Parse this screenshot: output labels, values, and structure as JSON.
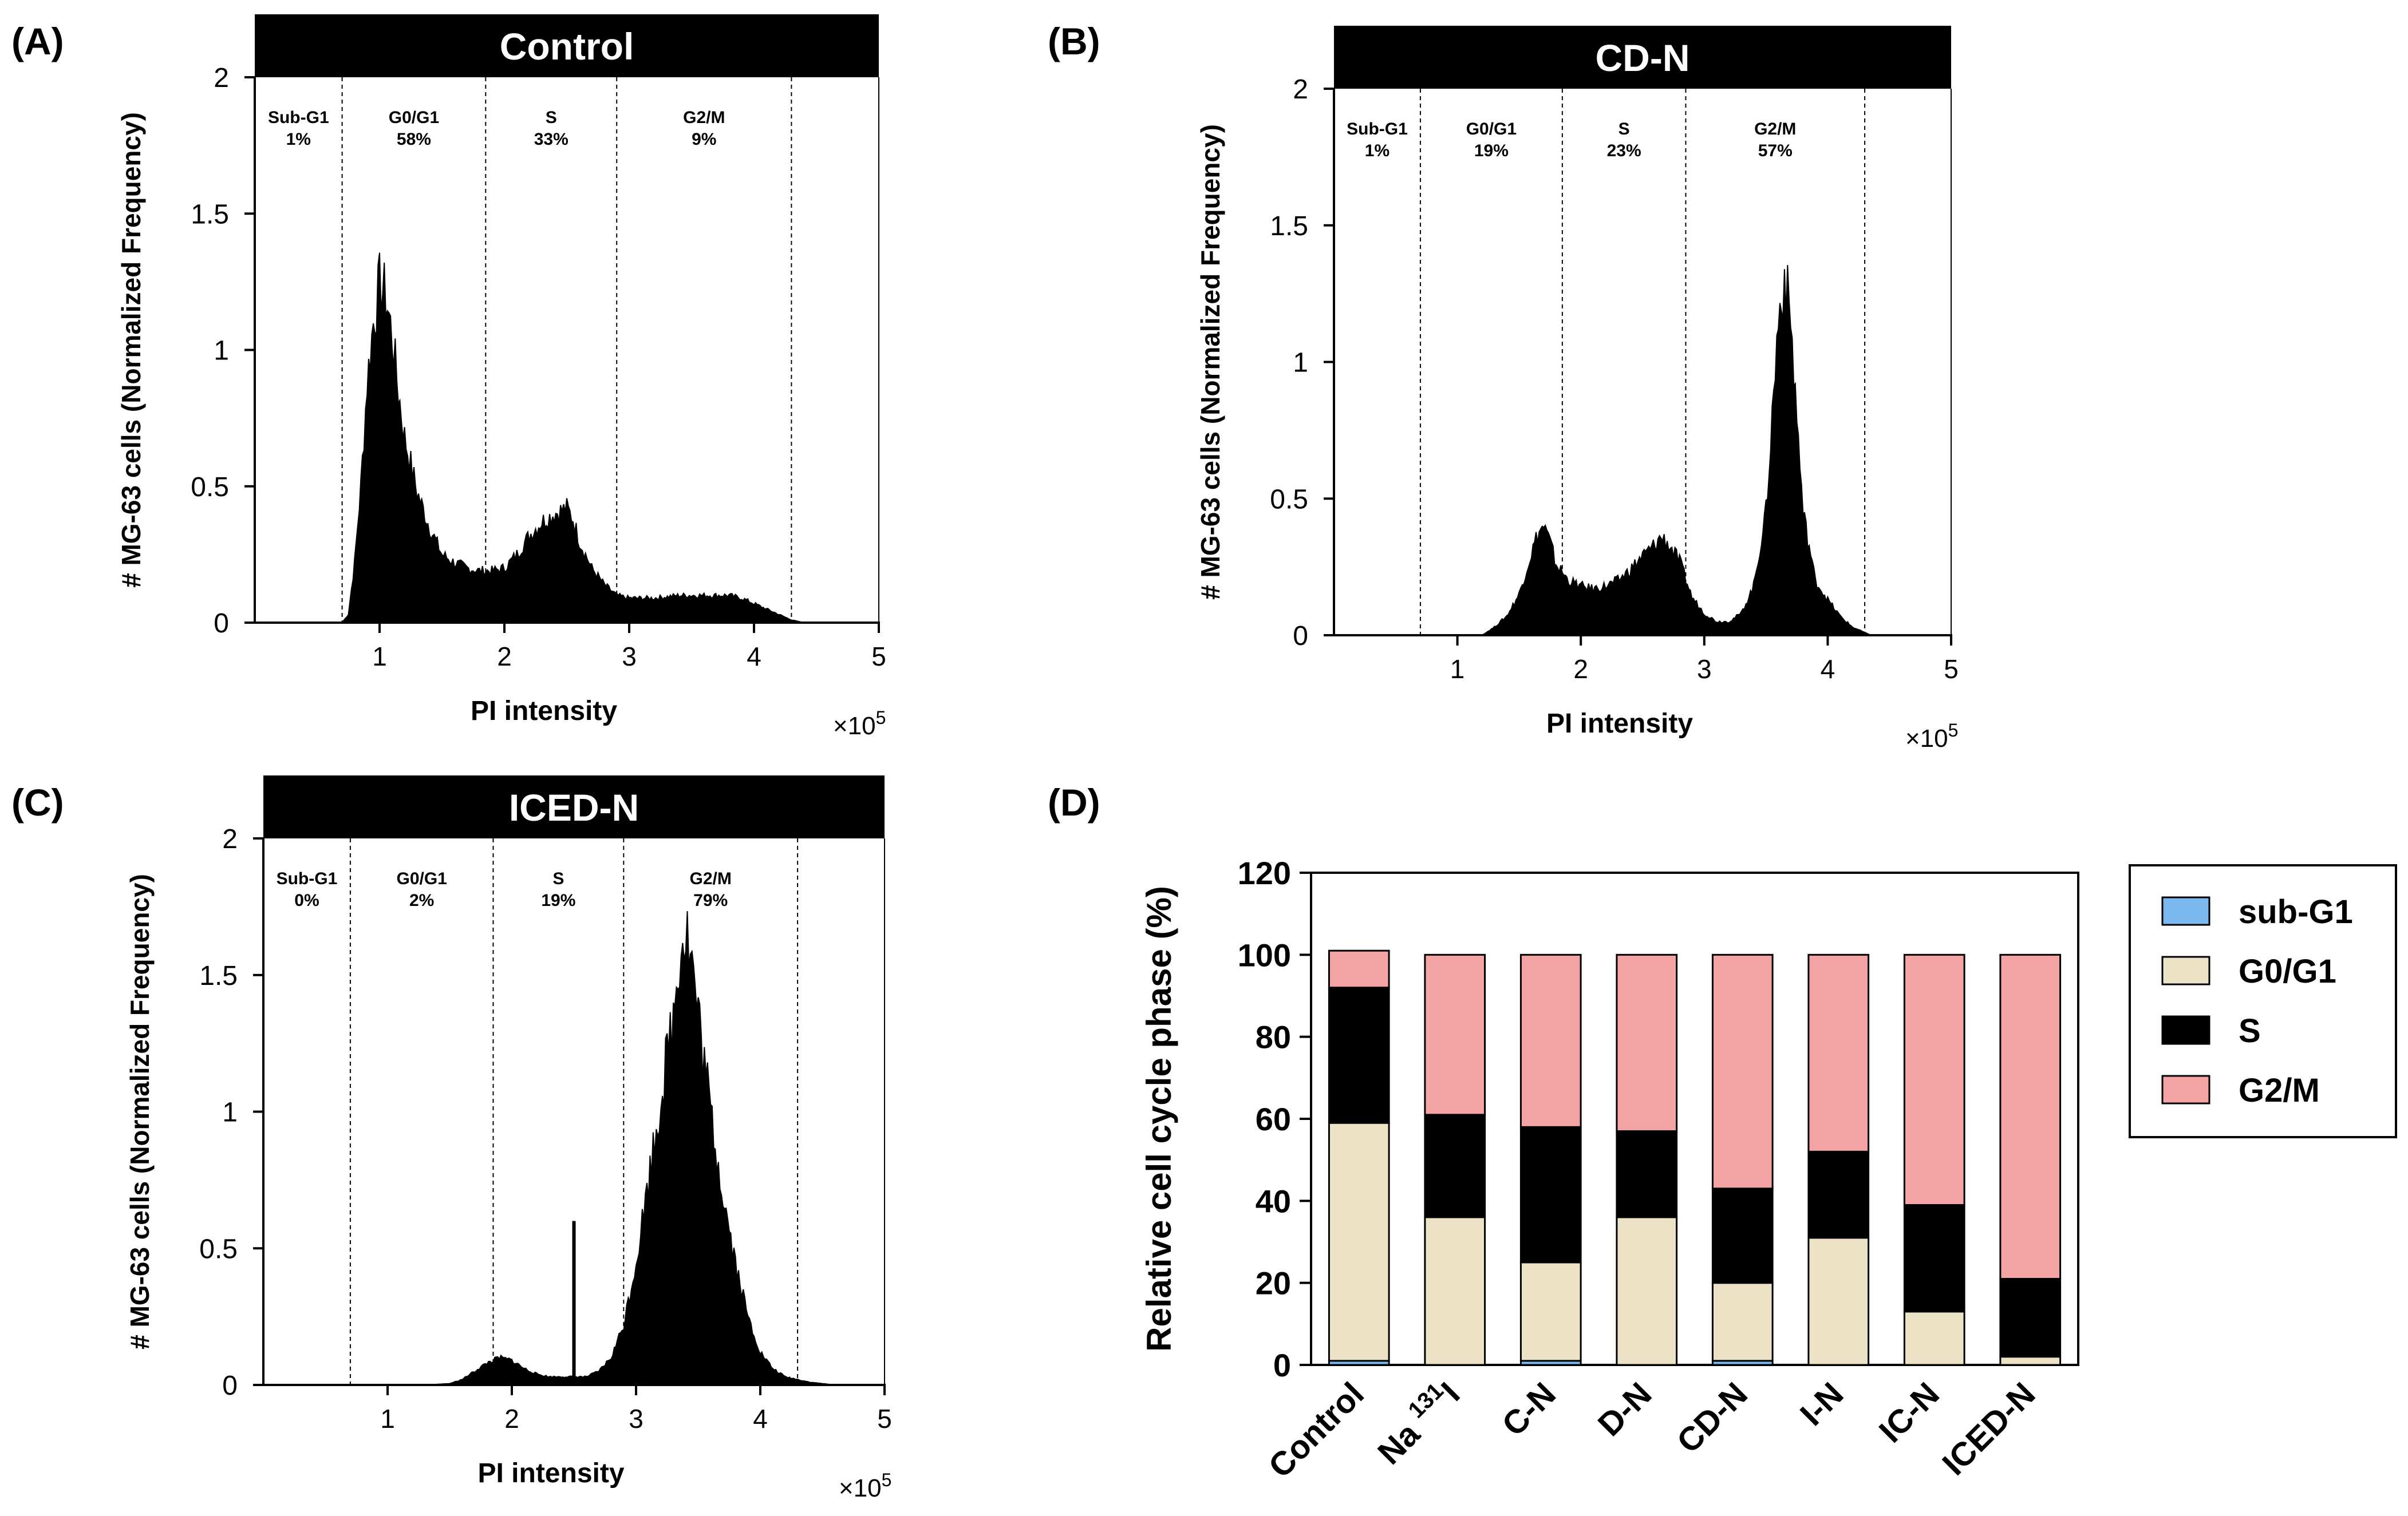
{
  "colors": {
    "histogram_fill": "#000000",
    "title_bar": "#000000",
    "title_text": "#ffffff",
    "sub_g1": "#7ab8f0",
    "g0g1": "#ece3c6",
    "s": "#000000",
    "g2m": "#f4a3a5"
  },
  "panels": [
    {
      "id": "A",
      "label": "(A)",
      "title": "Control",
      "ylabel": "# MG-63 cells (Normalized Frequency)",
      "xlabel": "PI intensity",
      "multiplier": "×10",
      "multiplier_exp": "5",
      "xlim": [
        0,
        5
      ],
      "ylim": [
        0,
        2
      ],
      "xticks": [
        "1",
        "2",
        "3",
        "4",
        "5"
      ],
      "yticks": [
        "0",
        "0.5",
        "1",
        "1.5",
        "2"
      ],
      "gates": [
        0.7,
        1.85,
        2.9,
        4.3
      ],
      "phases": [
        {
          "name": "Sub-G1",
          "pct": "1%"
        },
        {
          "name": "G0/G1",
          "pct": "58%"
        },
        {
          "name": "S",
          "pct": "33%"
        },
        {
          "name": "G2/M",
          "pct": "9%"
        }
      ],
      "histogram": [
        [
          0,
          0
        ],
        [
          0.7,
          0
        ],
        [
          0.75,
          0.03
        ],
        [
          0.8,
          0.22
        ],
        [
          0.85,
          0.5
        ],
        [
          0.9,
          0.88
        ],
        [
          0.95,
          1.1
        ],
        [
          1.0,
          1.24
        ],
        [
          1.05,
          1.2
        ],
        [
          1.1,
          1.05
        ],
        [
          1.15,
          0.85
        ],
        [
          1.2,
          0.68
        ],
        [
          1.3,
          0.48
        ],
        [
          1.4,
          0.35
        ],
        [
          1.5,
          0.25
        ],
        [
          1.6,
          0.22
        ],
        [
          1.7,
          0.2
        ],
        [
          1.8,
          0.19
        ],
        [
          1.9,
          0.19
        ],
        [
          2.0,
          0.2
        ],
        [
          2.1,
          0.25
        ],
        [
          2.2,
          0.32
        ],
        [
          2.3,
          0.37
        ],
        [
          2.4,
          0.4
        ],
        [
          2.5,
          0.42
        ],
        [
          2.55,
          0.38
        ],
        [
          2.6,
          0.3
        ],
        [
          2.7,
          0.2
        ],
        [
          2.8,
          0.14
        ],
        [
          2.9,
          0.1
        ],
        [
          3.0,
          0.09
        ],
        [
          3.2,
          0.09
        ],
        [
          3.4,
          0.1
        ],
        [
          3.6,
          0.1
        ],
        [
          3.8,
          0.1
        ],
        [
          3.9,
          0.09
        ],
        [
          4.0,
          0.07
        ],
        [
          4.1,
          0.05
        ],
        [
          4.2,
          0.03
        ],
        [
          4.3,
          0.01
        ],
        [
          4.4,
          0.0
        ],
        [
          5.0,
          0.0
        ]
      ]
    },
    {
      "id": "B",
      "label": "(B)",
      "title": "CD-N",
      "ylabel": "# MG-63 cells (Normalized Frequency)",
      "xlabel": "PI intensity",
      "multiplier": "×10",
      "multiplier_exp": "5",
      "xlim": [
        0,
        5
      ],
      "ylim": [
        0,
        2
      ],
      "xticks": [
        "1",
        "2",
        "3",
        "4",
        "5"
      ],
      "yticks": [
        "0",
        "0.5",
        "1",
        "1.5",
        "2"
      ],
      "gates": [
        0.7,
        1.85,
        2.85,
        4.3
      ],
      "phases": [
        {
          "name": "Sub-G1",
          "pct": "1%"
        },
        {
          "name": "G0/G1",
          "pct": "19%"
        },
        {
          "name": "S",
          "pct": "23%"
        },
        {
          "name": "G2/M",
          "pct": "57%"
        }
      ],
      "histogram": [
        [
          0,
          0
        ],
        [
          1.2,
          0
        ],
        [
          1.3,
          0.03
        ],
        [
          1.4,
          0.07
        ],
        [
          1.5,
          0.15
        ],
        [
          1.6,
          0.3
        ],
        [
          1.65,
          0.37
        ],
        [
          1.7,
          0.4
        ],
        [
          1.75,
          0.34
        ],
        [
          1.8,
          0.26
        ],
        [
          1.9,
          0.2
        ],
        [
          2.0,
          0.18
        ],
        [
          2.1,
          0.17
        ],
        [
          2.2,
          0.18
        ],
        [
          2.3,
          0.2
        ],
        [
          2.4,
          0.24
        ],
        [
          2.5,
          0.29
        ],
        [
          2.6,
          0.33
        ],
        [
          2.65,
          0.36
        ],
        [
          2.7,
          0.34
        ],
        [
          2.8,
          0.27
        ],
        [
          2.9,
          0.14
        ],
        [
          3.0,
          0.08
        ],
        [
          3.1,
          0.05
        ],
        [
          3.2,
          0.05
        ],
        [
          3.3,
          0.08
        ],
        [
          3.4,
          0.18
        ],
        [
          3.5,
          0.45
        ],
        [
          3.55,
          0.8
        ],
        [
          3.6,
          1.15
        ],
        [
          3.65,
          1.32
        ],
        [
          3.7,
          1.15
        ],
        [
          3.75,
          0.8
        ],
        [
          3.8,
          0.45
        ],
        [
          3.9,
          0.2
        ],
        [
          4.0,
          0.13
        ],
        [
          4.1,
          0.07
        ],
        [
          4.2,
          0.03
        ],
        [
          4.3,
          0.01
        ],
        [
          4.35,
          0.0
        ],
        [
          5.0,
          0.0
        ]
      ]
    },
    {
      "id": "C",
      "label": "(C)",
      "title": "ICED-N",
      "ylabel": "# MG-63 cells (Normalized Frequency)",
      "xlabel": "PI intensity",
      "multiplier": "×10",
      "multiplier_exp": "5",
      "xlim": [
        0,
        5
      ],
      "ylim": [
        0,
        2
      ],
      "xticks": [
        "1",
        "2",
        "3",
        "4",
        "5"
      ],
      "yticks": [
        "0",
        "0.5",
        "1",
        "1.5",
        "2"
      ],
      "gates": [
        0.7,
        1.85,
        2.9,
        4.3
      ],
      "phases": [
        {
          "name": "Sub-G1",
          "pct": "0%"
        },
        {
          "name": "G0/G1",
          "pct": "2%"
        },
        {
          "name": "S",
          "pct": "19%"
        },
        {
          "name": "G2/M",
          "pct": "79%"
        }
      ],
      "spike": {
        "x": 2.5,
        "y": 0.6
      },
      "histogram": [
        [
          0,
          0
        ],
        [
          1.3,
          0
        ],
        [
          1.5,
          0.005
        ],
        [
          1.6,
          0.02
        ],
        [
          1.7,
          0.05
        ],
        [
          1.8,
          0.08
        ],
        [
          1.9,
          0.1
        ],
        [
          2.0,
          0.09
        ],
        [
          2.1,
          0.06
        ],
        [
          2.2,
          0.04
        ],
        [
          2.3,
          0.03
        ],
        [
          2.4,
          0.03
        ],
        [
          2.6,
          0.03
        ],
        [
          2.7,
          0.05
        ],
        [
          2.8,
          0.1
        ],
        [
          2.9,
          0.22
        ],
        [
          3.0,
          0.45
        ],
        [
          3.1,
          0.75
        ],
        [
          3.2,
          1.05
        ],
        [
          3.3,
          1.35
        ],
        [
          3.35,
          1.6
        ],
        [
          3.4,
          1.68
        ],
        [
          3.45,
          1.55
        ],
        [
          3.5,
          1.35
        ],
        [
          3.6,
          1.0
        ],
        [
          3.7,
          0.7
        ],
        [
          3.8,
          0.45
        ],
        [
          3.9,
          0.25
        ],
        [
          4.0,
          0.12
        ],
        [
          4.1,
          0.06
        ],
        [
          4.2,
          0.03
        ],
        [
          4.4,
          0.01
        ],
        [
          4.6,
          0.0
        ],
        [
          5.0,
          0.0
        ]
      ]
    }
  ],
  "chart_data": [
    {
      "type": "histogram",
      "panel": "(A)",
      "title": "Control",
      "xlabel": "PI intensity",
      "ylabel": "# MG-63 cells (Normalized Frequency)",
      "xlim": [
        0,
        5
      ],
      "ylim": [
        0,
        2
      ],
      "phases": {
        "Sub-G1": 1,
        "G0/G1": 58,
        "S": 33,
        "G2/M": 9
      }
    },
    {
      "type": "histogram",
      "panel": "(B)",
      "title": "CD-N",
      "xlabel": "PI intensity",
      "ylabel": "# MG-63 cells (Normalized Frequency)",
      "xlim": [
        0,
        5
      ],
      "ylim": [
        0,
        2
      ],
      "phases": {
        "Sub-G1": 1,
        "G0/G1": 19,
        "S": 23,
        "G2/M": 57
      }
    },
    {
      "type": "histogram",
      "panel": "(C)",
      "title": "ICED-N",
      "xlabel": "PI intensity",
      "ylabel": "# MG-63 cells (Normalized Frequency)",
      "xlim": [
        0,
        5
      ],
      "ylim": [
        0,
        2
      ],
      "phases": {
        "Sub-G1": 0,
        "G0/G1": 2,
        "S": 19,
        "G2/M": 79
      }
    },
    {
      "type": "bar",
      "stacked": true,
      "panel": "(D)",
      "label": "(D)",
      "ylabel": "Relative cell cycle phase (%)",
      "ylim": [
        0,
        120
      ],
      "yticks": [
        "0",
        "20",
        "40",
        "60",
        "80",
        "100",
        "120"
      ],
      "categories": [
        "Control",
        "Na131I",
        "C-N",
        "D-N",
        "CD-N",
        "I-N",
        "IC-N",
        "ICED-N"
      ],
      "category_labels": [
        {
          "main": "Control",
          "sup": "",
          "tail": ""
        },
        {
          "main": "Na ",
          "sup": "131",
          "tail": "I"
        },
        {
          "main": "C-N",
          "sup": "",
          "tail": ""
        },
        {
          "main": "D-N",
          "sup": "",
          "tail": ""
        },
        {
          "main": "CD-N",
          "sup": "",
          "tail": ""
        },
        {
          "main": "I-N",
          "sup": "",
          "tail": ""
        },
        {
          "main": "IC-N",
          "sup": "",
          "tail": ""
        },
        {
          "main": "ICED-N",
          "sup": "",
          "tail": ""
        }
      ],
      "series": [
        {
          "name": "sub-G1",
          "color": "#7ab8f0",
          "values": [
            1,
            0,
            1,
            0,
            1,
            0,
            0,
            0
          ]
        },
        {
          "name": "G0/G1",
          "color": "#ece3c6",
          "values": [
            58,
            36,
            24,
            36,
            19,
            31,
            13,
            2
          ]
        },
        {
          "name": "S",
          "color": "#000000",
          "values": [
            33,
            25,
            33,
            21,
            23,
            21,
            26,
            19
          ]
        },
        {
          "name": "G2/M",
          "color": "#f4a3a5",
          "values": [
            9,
            39,
            42,
            43,
            57,
            48,
            61,
            79
          ]
        }
      ],
      "legend_position": "right"
    }
  ]
}
